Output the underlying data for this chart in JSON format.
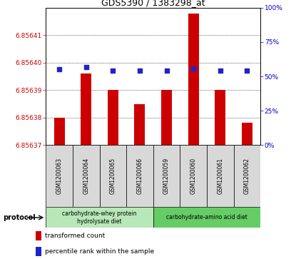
{
  "title": "GDS5390 / 1383298_at",
  "samples": [
    "GSM1200063",
    "GSM1200064",
    "GSM1200065",
    "GSM1200066",
    "GSM1200059",
    "GSM1200060",
    "GSM1200061",
    "GSM1200062"
  ],
  "bar_values": [
    6.85638,
    6.856396,
    6.85639,
    6.856385,
    6.85639,
    6.856418,
    6.85639,
    6.856378
  ],
  "percentile_values": [
    55,
    57,
    54,
    54,
    54,
    56,
    54,
    54
  ],
  "y_min": 6.85637,
  "y_max": 6.85642,
  "y_ticks": [
    6.85637,
    6.85638,
    6.85639,
    6.8564,
    6.85641
  ],
  "y2_ticks": [
    0,
    25,
    50,
    75,
    100
  ],
  "bar_color": "#cc0000",
  "dot_color": "#2222cc",
  "protocol_groups": [
    {
      "label": "carbohydrate-whey protein\nhydrolysate diet",
      "indices": [
        0,
        3
      ],
      "color": "#b8e8b8"
    },
    {
      "label": "carbohydrate-amino acid diet",
      "indices": [
        4,
        7
      ],
      "color": "#66cc66"
    }
  ],
  "protocol_label": "protocol",
  "legend_bar_label": "transformed count",
  "legend_dot_label": "percentile rank within the sample",
  "left_label_color": "#cc0000",
  "right_label_color": "#0000cc",
  "sample_box_color": "#d8d8d8",
  "bar_width": 0.4
}
